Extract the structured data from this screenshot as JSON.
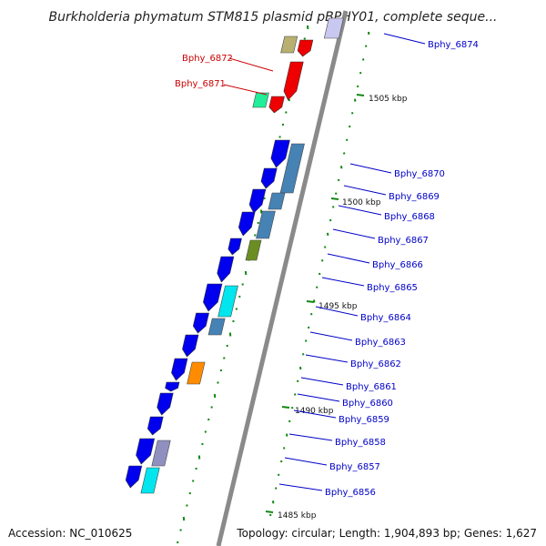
{
  "title": "Burkholderia phymatum STM815 plasmid pBPHY01, complete seque...",
  "footer": {
    "accession": "Accession: NC_010625",
    "topology": "Topology: circular; Length: 1,904,893 bp; Genes: 1,627"
  },
  "colors": {
    "forward_label": "#0000c8",
    "reverse_label": "#cc0000",
    "backbone": "#888888",
    "tick": "#118811"
  },
  "position_markers": [
    "1505 kbp",
    "1500 kbp",
    "1495 kbp",
    "1490 kbp",
    "1485 kbp"
  ],
  "gene_labels": {
    "reverse": [
      "Bphy_6872",
      "Bphy_6871"
    ],
    "forward": [
      "Bphy_6874",
      "Bphy_6870",
      "Bphy_6869",
      "Bphy_6868",
      "Bphy_6867",
      "Bphy_6866",
      "Bphy_6865",
      "Bphy_6864",
      "Bphy_6863",
      "Bphy_6862",
      "Bphy_6861",
      "Bphy_6860",
      "Bphy_6859",
      "Bphy_6858",
      "Bphy_6857",
      "Bphy_6856"
    ]
  }
}
